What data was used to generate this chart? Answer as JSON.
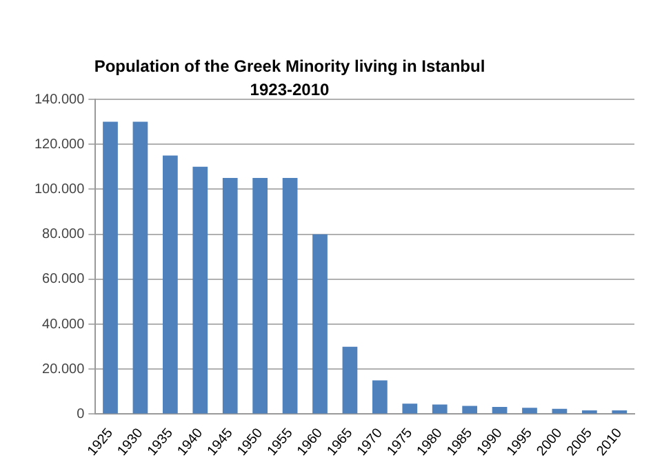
{
  "chart_data": {
    "type": "bar",
    "title": "Population of the Greek Minority living in Istanbul 1923-2010",
    "categories": [
      "1925",
      "1930",
      "1935",
      "1940",
      "1945",
      "1950",
      "1955",
      "1960",
      "1965",
      "1970",
      "1975",
      "1980",
      "1985",
      "1990",
      "1995",
      "2000",
      "2005",
      "2010"
    ],
    "values": [
      130000,
      130000,
      115000,
      110000,
      105000,
      105000,
      105000,
      80000,
      30000,
      15000,
      4700,
      4300,
      3700,
      3200,
      2800,
      2400,
      1700,
      1700
    ],
    "color": "#4f81bd",
    "ylim": [
      0,
      140000
    ],
    "yticks": [
      {
        "value": 0,
        "label": "0"
      },
      {
        "value": 20000,
        "label": "20.000"
      },
      {
        "value": 40000,
        "label": "40.000"
      },
      {
        "value": 60000,
        "label": "60.000"
      },
      {
        "value": 80000,
        "label": "80.000"
      },
      {
        "value": 100000,
        "label": "100.000"
      },
      {
        "value": 120000,
        "label": "120.000"
      },
      {
        "value": 140000,
        "label": "140.000"
      }
    ],
    "grid": "y",
    "legend": false
  }
}
